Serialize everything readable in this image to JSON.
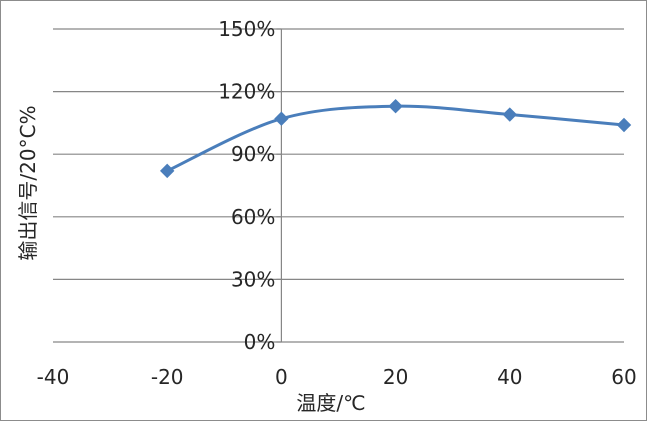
{
  "chart_data": {
    "type": "line",
    "title": "",
    "xlabel": "温度/℃",
    "ylabel": "输出信号/20°C%",
    "x": [
      -20,
      0,
      20,
      40,
      60
    ],
    "series": [
      {
        "values": [
          82,
          107,
          113,
          109,
          104
        ]
      }
    ],
    "xlim": [
      -40,
      60
    ],
    "ylim": [
      0,
      150
    ],
    "xticks": [
      -40,
      -20,
      0,
      20,
      40,
      60
    ],
    "xtick_labels": [
      "-40",
      "-20",
      "0",
      "20",
      "40",
      "60"
    ],
    "yticks": [
      0,
      30,
      60,
      90,
      120,
      150
    ],
    "ytick_labels": [
      "0%",
      "30%",
      "60%",
      "90%",
      "120%",
      "150%"
    ],
    "y_axis_crosses_x_at": 0,
    "grid": "horizontal",
    "smooth": true,
    "marker": "diamond",
    "line_color": "#4a7ebb",
    "grid_color": "#868686",
    "legend": "none"
  }
}
